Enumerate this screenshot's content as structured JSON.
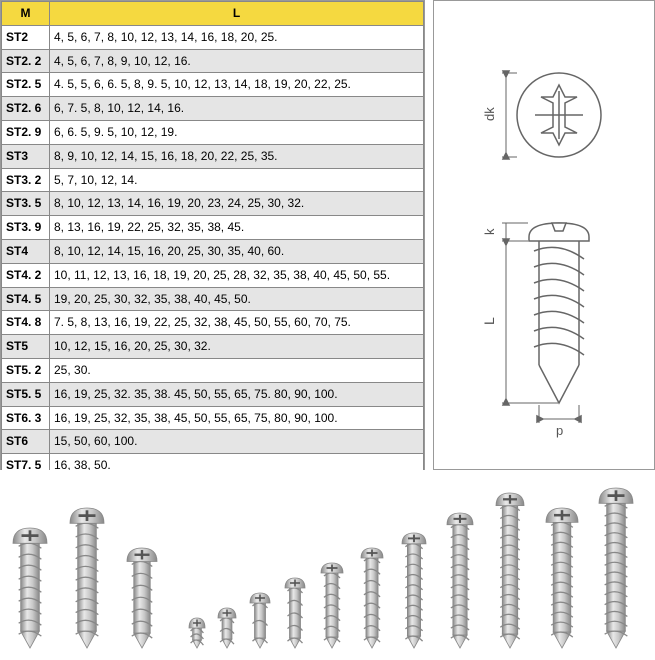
{
  "table": {
    "header_bg": "#f5d940",
    "alt_row_bg": "#e5e5e5",
    "border_color": "#888888",
    "columns": [
      "M",
      "L"
    ],
    "rows": [
      [
        "ST2",
        "4, 5, 6, 7, 8, 10, 12, 13, 14, 16, 18, 20, 25."
      ],
      [
        "ST2. 2",
        "4, 5, 6, 7, 8, 9, 10, 12, 16."
      ],
      [
        "ST2. 5",
        "4. 5, 5, 6, 6. 5, 8, 9. 5, 10, 12, 13, 14, 18, 19, 20, 22, 25."
      ],
      [
        "ST2. 6",
        "6, 7. 5, 8, 10, 12, 14, 16."
      ],
      [
        "ST2. 9",
        "6, 6. 5, 9. 5, 10, 12, 19."
      ],
      [
        "ST3",
        "8,  9, 10, 12, 14, 15, 16, 18, 20, 22, 25, 35."
      ],
      [
        "ST3. 2",
        "5, 7, 10, 12, 14."
      ],
      [
        "ST3. 5",
        "8, 10, 12, 13, 14, 16, 19, 20, 23, 24, 25, 30, 32."
      ],
      [
        "ST3. 9",
        "8, 13, 16, 19, 22, 25, 32, 35, 38, 45."
      ],
      [
        "ST4",
        "8, 10, 12, 14, 15, 16, 20, 25, 30, 35, 40, 60."
      ],
      [
        "ST4. 2",
        "10, 11, 12, 13, 16, 18, 19, 20, 25, 28, 32, 35, 38, 40, 45, 50, 55."
      ],
      [
        "ST4. 5",
        "19, 20, 25, 30, 32, 35, 38, 40, 45, 50."
      ],
      [
        "ST4. 8",
        "7. 5, 8, 13, 16, 19, 22, 25, 32, 38, 45, 50, 55, 60, 70, 75."
      ],
      [
        "ST5",
        "10, 12, 15, 16, 20, 25, 30, 32."
      ],
      [
        "ST5. 2",
        "25, 30."
      ],
      [
        "ST5. 5",
        "16, 19, 25, 32. 35, 38. 45, 50, 55, 65, 75. 80, 90, 100."
      ],
      [
        "ST6. 3",
        "16, 19, 25, 32, 35, 38, 45, 50, 55, 65, 75, 80, 90, 100."
      ],
      [
        "ST6",
        "15, 50, 60, 100."
      ],
      [
        "ST7. 5",
        "16, 38, 50."
      ]
    ]
  },
  "diagram": {
    "stroke": "#666666",
    "label_dk": "dk",
    "label_k": "k",
    "label_L": "L",
    "label_p": "p"
  },
  "photo": {
    "screw_fill": "#c8c8c8",
    "screw_stroke": "#888888",
    "screw_highlight": "#e8e8e8",
    "heights": [
      120,
      140,
      100,
      30,
      40,
      55,
      70,
      85,
      100,
      115,
      135,
      155,
      140,
      160
    ]
  }
}
